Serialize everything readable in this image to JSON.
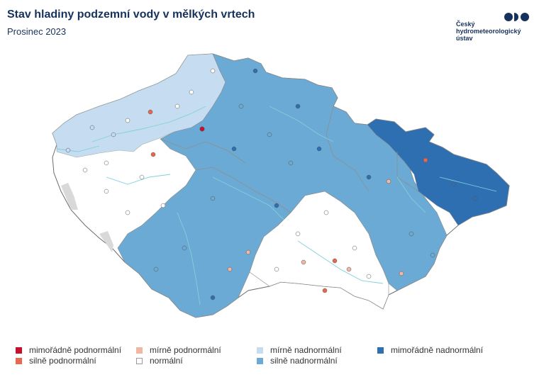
{
  "header": {
    "title": "Stav hladiny podzemní vody v mělkých vrtech",
    "subtitle": "Prosinec 2023"
  },
  "logo": {
    "text": "Český\nhydrometeorologický\nústav",
    "mark_icon": "chmi-logo-icon"
  },
  "colors": {
    "extreme_low": "#c8102e",
    "strong_low": "#e8684f",
    "mild_low": "#f2b6a4",
    "normal": "#ffffff",
    "mild_high": "#c6dcf0",
    "strong_high": "#6baad4",
    "extreme_high": "#2e6fb2",
    "border": "#8a8a8a",
    "river": "#7fd0dc"
  },
  "legend": [
    {
      "key": "extreme_low",
      "label": "mimořádně podnormální"
    },
    {
      "key": "strong_low",
      "label": "silně podnormální"
    },
    {
      "key": "mild_low",
      "label": "mírně podnormální"
    },
    {
      "key": "normal",
      "label": "normální"
    },
    {
      "key": "mild_high",
      "label": "mírně nadnormální"
    },
    {
      "key": "strong_high",
      "label": "silně nadnormální"
    },
    {
      "key": "extreme_high",
      "label": "mimořádně nadnormální"
    }
  ]
}
